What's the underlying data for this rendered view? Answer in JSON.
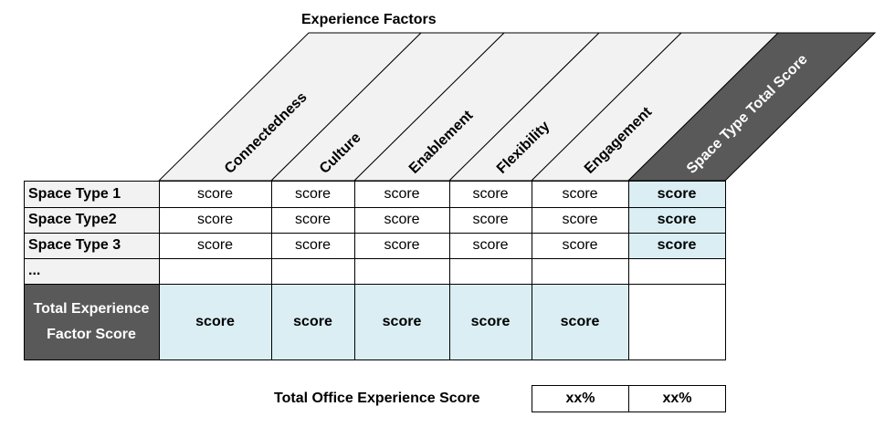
{
  "title": "Experience Factors",
  "factors": [
    "Connectedness",
    "Culture",
    "Enablement",
    "Flexibility",
    "Engagement"
  ],
  "total_column_label": "Space Type Total Score",
  "rows": [
    {
      "label": "Space Type 1",
      "scores": [
        "score",
        "score",
        "score",
        "score",
        "score"
      ],
      "total": "score"
    },
    {
      "label": "Space Type2",
      "scores": [
        "score",
        "score",
        "score",
        "score",
        "score"
      ],
      "total": "score"
    },
    {
      "label": "Space Type 3",
      "scores": [
        "score",
        "score",
        "score",
        "score",
        "score"
      ],
      "total": "score"
    },
    {
      "label": "...",
      "scores": [
        "",
        "",
        "",
        "",
        ""
      ],
      "total": ""
    }
  ],
  "total_row": {
    "label": "Total Experience Factor Score",
    "scores": [
      "score",
      "score",
      "score",
      "score",
      "score"
    ]
  },
  "office_total": {
    "label": "Total Office Experience Score",
    "values": [
      "xx%",
      "xx%"
    ]
  },
  "colors": {
    "header_fill": "#f2f2f2",
    "dark_fill": "#595959",
    "light_blue": "#daeef3",
    "row_label_fill": "#f2f2f2"
  }
}
